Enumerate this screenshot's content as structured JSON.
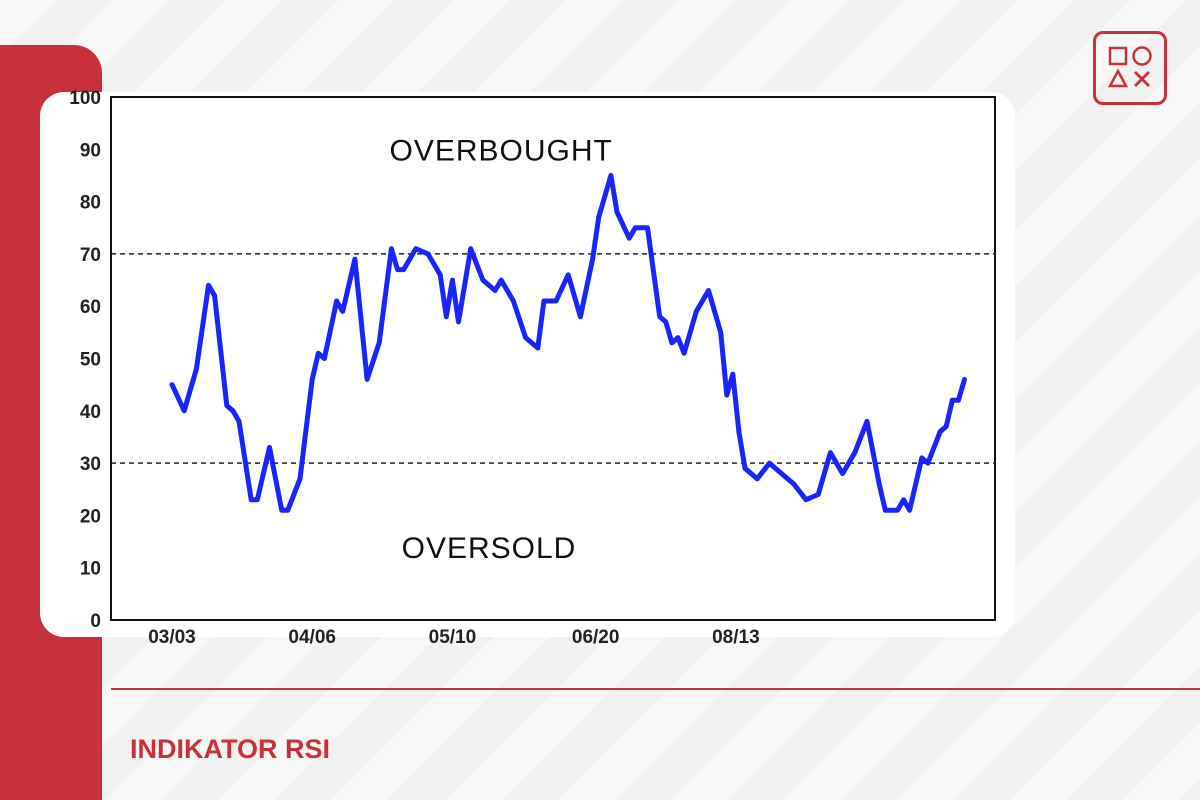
{
  "page": {
    "title": "INDIKATOR RSI",
    "accent_color": "#c7323a",
    "logo_icon": "shapes-logo-icon"
  },
  "chart_data": {
    "type": "line",
    "title": "",
    "xlabel": "",
    "ylabel": "",
    "ylim": [
      0,
      100
    ],
    "yticks": [
      "0",
      "10",
      "20",
      "30",
      "40",
      "50",
      "60",
      "70",
      "80",
      "90",
      "100"
    ],
    "xticks": [
      "03/03",
      "04/06",
      "05/10",
      "06/20",
      "08/13"
    ],
    "line_color": "#1a24ff",
    "reference_lines": [
      {
        "value": 70,
        "style": "dashed"
      },
      {
        "value": 30,
        "style": "dashed"
      }
    ],
    "annotations": [
      {
        "text": "OVERBOUGHT",
        "near_y": 90
      },
      {
        "text": "OVERSOLD",
        "near_y": 14
      }
    ],
    "series": [
      {
        "points": [
          [
            0,
            45
          ],
          [
            2,
            40
          ],
          [
            4,
            48
          ],
          [
            6,
            64
          ],
          [
            7,
            62
          ],
          [
            9,
            41
          ],
          [
            10,
            40
          ],
          [
            11,
            38
          ],
          [
            13,
            23
          ],
          [
            14,
            23
          ],
          [
            16,
            33
          ],
          [
            18,
            21
          ],
          [
            19,
            21
          ],
          [
            21,
            27
          ],
          [
            23,
            46
          ],
          [
            24,
            51
          ],
          [
            25,
            50
          ],
          [
            27,
            61
          ],
          [
            28,
            59
          ],
          [
            30,
            69
          ],
          [
            32,
            46
          ],
          [
            34,
            53
          ],
          [
            36,
            71
          ],
          [
            37,
            67
          ],
          [
            38,
            67
          ],
          [
            40,
            71
          ],
          [
            42,
            70
          ],
          [
            44,
            66
          ],
          [
            45,
            58
          ],
          [
            46,
            65
          ],
          [
            47,
            57
          ],
          [
            49,
            71
          ],
          [
            51,
            65
          ],
          [
            53,
            63
          ],
          [
            54,
            65
          ],
          [
            56,
            61
          ],
          [
            58,
            54
          ],
          [
            60,
            52
          ],
          [
            61,
            61
          ],
          [
            63,
            61
          ],
          [
            65,
            66
          ],
          [
            67,
            58
          ],
          [
            69,
            69
          ],
          [
            70,
            77
          ],
          [
            72,
            85
          ],
          [
            73,
            78
          ],
          [
            75,
            73
          ],
          [
            76,
            75
          ],
          [
            78,
            75
          ],
          [
            80,
            58
          ],
          [
            81,
            57
          ],
          [
            82,
            53
          ],
          [
            83,
            54
          ],
          [
            84,
            51
          ],
          [
            86,
            59
          ],
          [
            88,
            63
          ],
          [
            90,
            55
          ],
          [
            91,
            43
          ],
          [
            92,
            47
          ],
          [
            93,
            36
          ],
          [
            94,
            29
          ],
          [
            96,
            27
          ],
          [
            98,
            30
          ],
          [
            100,
            28
          ],
          [
            102,
            26
          ],
          [
            104,
            23
          ],
          [
            106,
            24
          ],
          [
            108,
            32
          ],
          [
            110,
            28
          ],
          [
            112,
            32
          ],
          [
            114,
            38
          ],
          [
            116,
            26
          ],
          [
            117,
            21
          ],
          [
            119,
            21
          ],
          [
            120,
            23
          ],
          [
            121,
            21
          ],
          [
            123,
            31
          ],
          [
            124,
            30
          ],
          [
            126,
            36
          ],
          [
            127,
            37
          ],
          [
            128,
            42
          ],
          [
            129,
            42
          ],
          [
            130,
            46
          ]
        ]
      }
    ]
  }
}
